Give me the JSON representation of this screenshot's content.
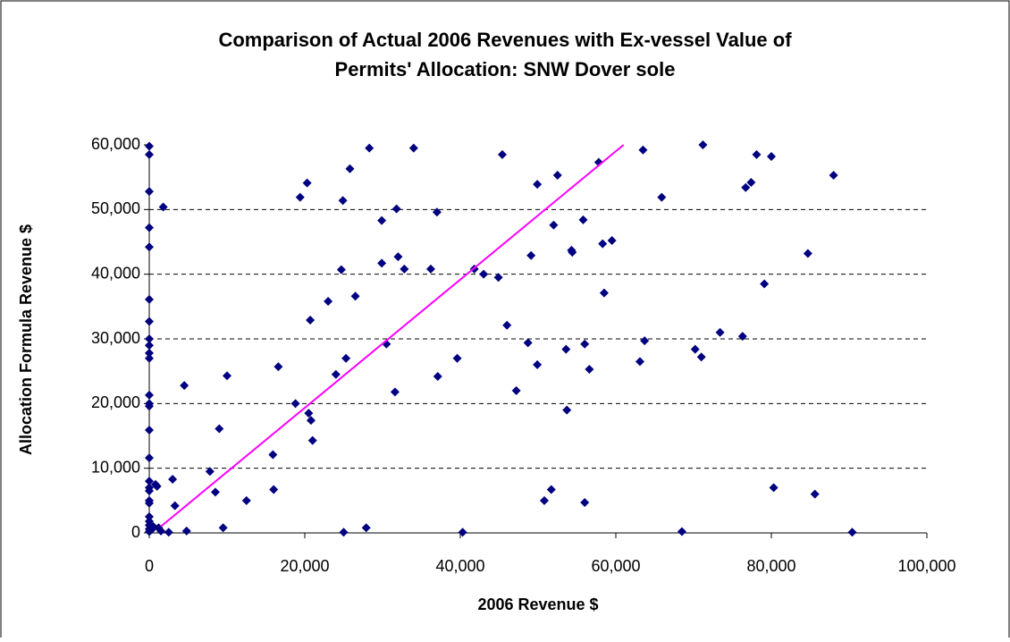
{
  "chart_data": {
    "type": "scatter",
    "title": "Comparison of Actual 2006 Revenues with Ex-vessel Value of",
    "subtitle": "Permits' Allocation: SNW Dover sole",
    "x_label": "2006 Revenue $",
    "y_label": "Allocation Formula Revenue $",
    "color": "#000080",
    "line_color": "#ff00ff",
    "grid": true,
    "xlim": [
      0,
      100000
    ],
    "ylim": [
      0,
      60000
    ],
    "xticks": [
      0,
      {
        "value": 20000,
        "label": "20,000"
      },
      {
        "value": 40000,
        "label": "40,000"
      },
      {
        "value": 60000,
        "label": "60,000"
      },
      {
        "value": 80000,
        "label": "80,000"
      },
      {
        "value": 100000,
        "label": "100,000"
      }
    ],
    "yticks": [
      0,
      {
        "value": 10000,
        "label": "10,000"
      },
      {
        "value": 20000,
        "label": "20,000"
      },
      {
        "value": 30000,
        "label": "30,000"
      },
      {
        "value": 40000,
        "label": "40,000"
      },
      {
        "value": 50000,
        "label": "50,000"
      },
      {
        "value": 60000,
        "label": "60,000"
      }
    ],
    "reference_line": {
      "x": [
        1500,
        61000
      ],
      "y": [
        1000,
        60000
      ]
    },
    "x": [
      0,
      0,
      0,
      0,
      0,
      0,
      0,
      0,
      0,
      0,
      0,
      0,
      0,
      0,
      0,
      0,
      0,
      0,
      0,
      0,
      0,
      0,
      0,
      0,
      0,
      0,
      300,
      500,
      800,
      1000,
      1200,
      1500,
      1800,
      2500,
      3000,
      3300,
      4500,
      4800,
      7800,
      8500,
      9000,
      9500,
      10000,
      12500,
      15900,
      16000,
      16600,
      18800,
      19400,
      20300,
      20500,
      20700,
      20800,
      21000,
      23000,
      24000,
      24700,
      24900,
      25000,
      25300,
      25800,
      26500,
      27900,
      28300,
      29900,
      29900,
      30500,
      31600,
      31800,
      32000,
      32800,
      34000,
      36200,
      37000,
      37100,
      39600,
      40300,
      41800,
      43000,
      44900,
      45400,
      46000,
      47200,
      48700,
      49100,
      49900,
      49900,
      50800,
      51700,
      52000,
      52500,
      53600,
      53700,
      54300,
      54400,
      55800,
      56000,
      56000,
      56600,
      57800,
      58300,
      58500,
      59500,
      63100,
      63500,
      63700,
      65900,
      68500,
      70200,
      71000,
      71200,
      73400,
      76300,
      76700,
      77400,
      78100,
      79100,
      80000,
      80300,
      84700,
      85600,
      88000,
      90400
    ],
    "y": [
      59800,
      58500,
      52800,
      47200,
      44200,
      36100,
      32700,
      30000,
      29000,
      27800,
      27000,
      21300,
      20000,
      19600,
      15900,
      11600,
      8000,
      7000,
      6500,
      5000,
      4600,
      2500,
      1800,
      1200,
      600,
      200,
      500,
      1000,
      7500,
      7200,
      800,
      300,
      50400,
      100,
      8300,
      4200,
      22800,
      300,
      9500,
      6300,
      16100,
      800,
      24300,
      5000,
      12100,
      6700,
      25700,
      20000,
      51900,
      54100,
      18500,
      32900,
      17400,
      14300,
      35800,
      24500,
      40700,
      51400,
      100,
      27000,
      56300,
      36600,
      800,
      59500,
      48300,
      41700,
      29200,
      21800,
      50100,
      42700,
      40800,
      59500,
      40800,
      49600,
      24200,
      27000,
      100,
      40800,
      40000,
      39500,
      58500,
      32100,
      22000,
      29400,
      42900,
      26000,
      53900,
      5000,
      6700,
      47600,
      55300,
      28400,
      19000,
      43700,
      43400,
      48400,
      29200,
      4700,
      25300,
      57300,
      44700,
      37100,
      45200,
      26500,
      59200,
      29700,
      51900,
      200,
      28400,
      27200,
      60000,
      31000,
      30400,
      53400,
      54200,
      58500,
      38500,
      58200,
      7000,
      43200,
      6000,
      55300,
      100
    ]
  }
}
